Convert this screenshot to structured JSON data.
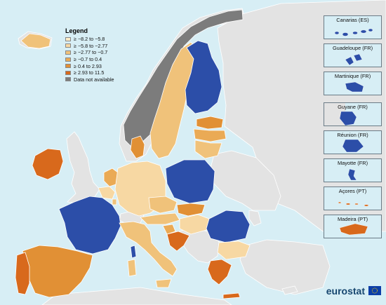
{
  "legend": {
    "title": "Legend",
    "classes": [
      {
        "label": "≥ −8.2 to −5.8",
        "color": "#fcebc7"
      },
      {
        "label": "≥ −5.8 to −2.77",
        "color": "#f7d8a3"
      },
      {
        "label": "≥ −2.77 to −0.7",
        "color": "#f0c27a"
      },
      {
        "label": "≥ −0.7 to 0.4",
        "color": "#eaaa55"
      },
      {
        "label": "≥ 0.4 to 2.93",
        "color": "#e19035"
      },
      {
        "label": "≥ 2.93 to 11.5",
        "color": "#d8691c"
      },
      {
        "label": "Data not available",
        "color": "#7c7c7c"
      }
    ]
  },
  "insets": [
    {
      "label": "Canarias (ES)",
      "color": "#2c4ea8"
    },
    {
      "label": "Guadeloupe (FR)",
      "color": "#2c4ea8"
    },
    {
      "label": "Martinique (FR)",
      "color": "#2c4ea8"
    },
    {
      "label": "Guyane (FR)",
      "color": "#2c4ea8"
    },
    {
      "label": "Réunion (FR)",
      "color": "#2c4ea8"
    },
    {
      "label": "Mayotte (FR)",
      "color": "#2c4ea8"
    },
    {
      "label": "Açores (PT)",
      "color": "#d8691c"
    },
    {
      "label": "Madeira (PT)",
      "color": "#d8691c"
    }
  ],
  "colors": {
    "sea": "#d7eef5",
    "non_eu_land": "#e3e3e3",
    "blue_class": "#2c4ea8",
    "border": "#ffffff"
  },
  "branding": {
    "name": "eurostat"
  }
}
